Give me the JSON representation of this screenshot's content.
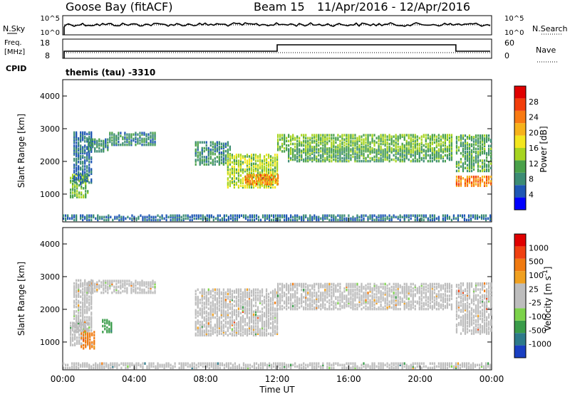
{
  "header": {
    "station": "Goose Bay (fitACF)",
    "beam": "Beam 15",
    "date_range": "11/Apr/2016 - 12/Apr/2016"
  },
  "noise_panel": {
    "left_label": "N.Sky",
    "left_ticks": [
      "10^5",
      "10^0"
    ],
    "right_label": "N.Search",
    "right_ticks": [
      "10^5",
      "10^0"
    ]
  },
  "freq_panel": {
    "left_label_line1": "Freq.",
    "left_label_line2": "[MHz]",
    "left_ticks": [
      "18",
      "8"
    ],
    "right_label": "Nave",
    "right_ticks": [
      "60",
      "0"
    ],
    "cpid_label": "CPID",
    "cpid_text": "themis (tau) -3310",
    "step_start_hour": 12.0,
    "step_end_hour": 22.0
  },
  "colors": {
    "power_scale": [
      "#0000ff",
      "#1f57b4",
      "#3c8c74",
      "#4aa14a",
      "#a6d420",
      "#f3e61e",
      "#f7b21a",
      "#f97a12",
      "#f23d0a",
      "#e00000"
    ],
    "velocity_scale": [
      "#1a3fc2",
      "#2d7a8a",
      "#3a9c4a",
      "#7cd24a",
      "#bdbdbd",
      "#bdbdbd",
      "#f0a020",
      "#f07a10",
      "#f04010",
      "#e00000"
    ]
  },
  "chart_data": [
    {
      "type": "heatmap",
      "id": "power",
      "ylabel": "Slant Range [km]",
      "ylim": [
        150,
        4500
      ],
      "yticks": [
        1000,
        2000,
        3000,
        4000
      ],
      "xlim": [
        0,
        24
      ],
      "colorbar_label": "Power [dB]",
      "colorbar_ticks": [
        "4",
        "8",
        "12",
        "16",
        "20",
        "24",
        "28"
      ],
      "colorbar_range": [
        0,
        30
      ],
      "regions": [
        {
          "t0": 0.4,
          "t1": 1.4,
          "r0": 900,
          "r1": 1600,
          "level": 12
        },
        {
          "t0": 0.6,
          "t1": 1.6,
          "r0": 1300,
          "r1": 2900,
          "level": 6
        },
        {
          "t0": 1.4,
          "t1": 2.6,
          "r0": 2300,
          "r1": 2700,
          "level": 8
        },
        {
          "t0": 2.6,
          "t1": 5.2,
          "r0": 2500,
          "r1": 2900,
          "level": 8
        },
        {
          "t0": 7.4,
          "t1": 9.4,
          "r0": 1900,
          "r1": 2600,
          "level": 8
        },
        {
          "t0": 9.2,
          "t1": 12.0,
          "r0": 1200,
          "r1": 2200,
          "level": 14
        },
        {
          "t0": 10.2,
          "t1": 12.0,
          "r0": 1300,
          "r1": 1600,
          "level": 22
        },
        {
          "t0": 12.0,
          "t1": 21.8,
          "r0": 2300,
          "r1": 2800,
          "level": 12
        },
        {
          "t0": 12.6,
          "t1": 21.8,
          "r0": 2000,
          "r1": 2400,
          "level": 10
        },
        {
          "t0": 22.0,
          "t1": 24.0,
          "r0": 1250,
          "r1": 1550,
          "level": 22
        },
        {
          "t0": 22.0,
          "t1": 24.0,
          "r0": 1700,
          "r1": 2800,
          "level": 10
        },
        {
          "t0": 0.0,
          "t1": 24.0,
          "r0": 200,
          "r1": 350,
          "level": 6
        }
      ]
    },
    {
      "type": "heatmap",
      "id": "velocity",
      "ylabel": "Slant Range [km]",
      "ylim": [
        150,
        4500
      ],
      "yticks": [
        1000,
        2000,
        3000,
        4000
      ],
      "xlim": [
        0,
        24
      ],
      "xlabel": "Time UT",
      "xticks": [
        "00:00",
        "04:00",
        "08:00",
        "12:00",
        "16:00",
        "20:00",
        "00:00"
      ],
      "colorbar_label": "Velocity [m s^-1]",
      "colorbar_ticks": [
        "1000",
        "500",
        "100",
        "25",
        "-25",
        "-100",
        "-500",
        "-1000"
      ],
      "regions": [
        {
          "t0": 0.4,
          "t1": 1.4,
          "r0": 900,
          "r1": 1600,
          "level": 5
        },
        {
          "t0": 1.0,
          "t1": 1.8,
          "r0": 800,
          "r1": 1300,
          "level": 7
        },
        {
          "t0": 2.2,
          "t1": 2.8,
          "r0": 1300,
          "r1": 1700,
          "level": 2
        },
        {
          "t0": 0.6,
          "t1": 1.6,
          "r0": 1300,
          "r1": 2900,
          "level": 5
        },
        {
          "t0": 1.4,
          "t1": 5.2,
          "r0": 2500,
          "r1": 2900,
          "level": 5
        },
        {
          "t0": 7.4,
          "t1": 12.0,
          "r0": 1200,
          "r1": 2600,
          "level": 5
        },
        {
          "t0": 12.0,
          "t1": 21.8,
          "r0": 2000,
          "r1": 2800,
          "level": 5
        },
        {
          "t0": 22.0,
          "t1": 24.0,
          "r0": 1250,
          "r1": 2800,
          "level": 5
        },
        {
          "t0": 0.0,
          "t1": 24.0,
          "r0": 200,
          "r1": 350,
          "level": 4
        }
      ]
    }
  ]
}
